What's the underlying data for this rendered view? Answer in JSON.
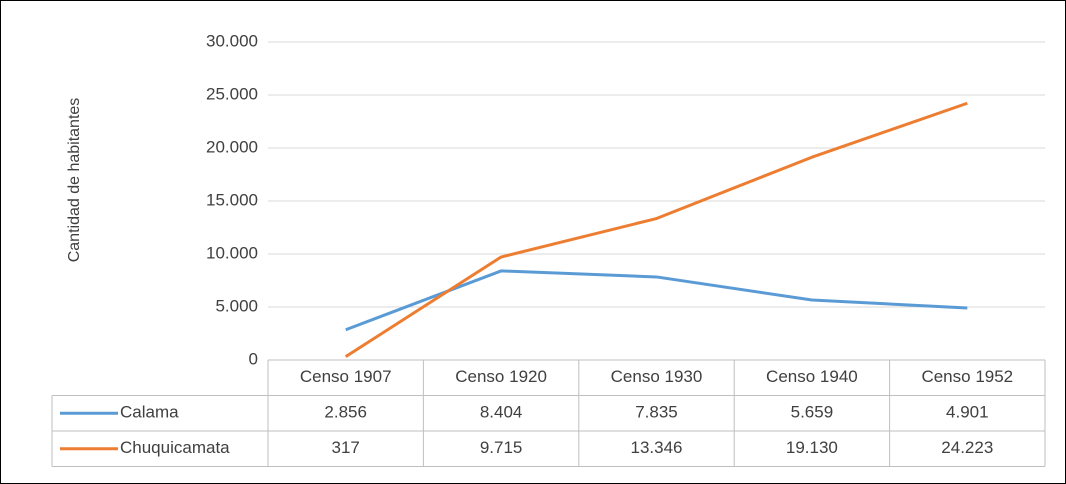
{
  "chart_data": {
    "type": "line",
    "y_label": "Cantidad de habitantes",
    "categories": [
      "Censo 1907",
      "Censo 1920",
      "Censo 1930",
      "Censo 1940",
      "Censo 1952"
    ],
    "series": [
      {
        "name": "Calama",
        "color": "#5b9bd5",
        "values": [
          2856,
          8404,
          7835,
          5659,
          4901
        ],
        "value_labels": [
          "2.856",
          "8.404",
          "7.835",
          "5.659",
          "4.901"
        ]
      },
      {
        "name": "Chuquicamata",
        "color": "#ed7d31",
        "values": [
          317,
          9715,
          13346,
          19130,
          24223
        ],
        "value_labels": [
          "317",
          "9.715",
          "13.346",
          "19.130",
          "24.223"
        ]
      }
    ],
    "ylim": [
      0,
      30000
    ],
    "yticks": [
      0,
      {
        "value": 5000,
        "label": "5.000"
      },
      {
        "value": 10000,
        "label": "10.000"
      },
      {
        "value": 15000,
        "label": "15.000"
      },
      {
        "value": 20000,
        "label": "20.000"
      },
      {
        "value": 25000,
        "label": "25.000"
      },
      {
        "value": 30000,
        "label": "30.000"
      }
    ],
    "grid": true,
    "data_table": true
  }
}
